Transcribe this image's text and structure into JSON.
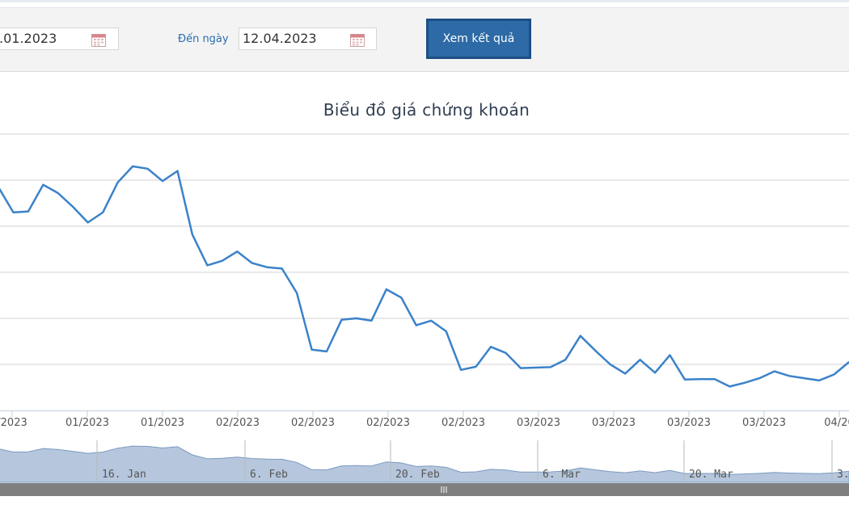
{
  "filter": {
    "from_value": ".01.2023",
    "to_label": "Đến ngày",
    "to_value": "12.04.2023",
    "submit_label": "Xem kết quả"
  },
  "colors": {
    "line": "#3b82c9",
    "navigator_fill": "#b6c7dd",
    "scrollbar": "#7f7f7f",
    "button": "#2d6aa6"
  },
  "chart_data": {
    "type": "line",
    "title": "Biểu đồ giá chứng khoán",
    "xlabel": "",
    "ylabel": "",
    "grid": true,
    "x_tick_labels": [
      "/2023",
      "01/2023",
      "01/2023",
      "02/2023",
      "02/2023",
      "02/2023",
      "02/2023",
      "03/2023",
      "03/2023",
      "03/2023",
      "03/2023",
      "04/20"
    ],
    "ylim": [
      0,
      6
    ],
    "series": [
      {
        "values": [
          4.85,
          4.3,
          4.32,
          4.9,
          4.72,
          4.42,
          4.08,
          4.3,
          4.95,
          5.3,
          5.25,
          4.98,
          5.2,
          3.82,
          3.15,
          3.25,
          3.45,
          3.2,
          3.11,
          3.08,
          2.55,
          1.32,
          1.28,
          1.97,
          2.0,
          1.95,
          2.63,
          2.45,
          1.85,
          1.95,
          1.72,
          0.88,
          0.95,
          1.38,
          1.25,
          0.92,
          0.93,
          0.94,
          1.1,
          1.62,
          1.3,
          1.0,
          0.8,
          1.1,
          0.82,
          1.2,
          0.67,
          0.68,
          0.68,
          0.52,
          0.6,
          0.7,
          0.85,
          0.75,
          0.7,
          0.65,
          0.78,
          1.05
        ]
      }
    ],
    "navigator": {
      "labels": [
        "16. Jan",
        "6. Feb",
        "20. Feb",
        "6. Mar",
        "20. Mar",
        "3."
      ]
    }
  }
}
